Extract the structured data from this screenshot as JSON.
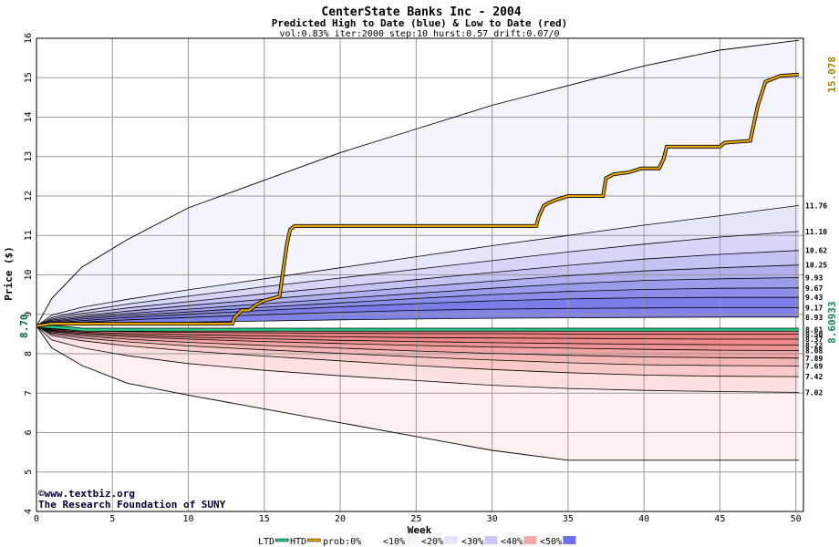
{
  "chart_data": {
    "type": "area",
    "title": "CenterState Banks Inc - 2004",
    "subtitle": "Predicted High to Date (blue) &  Low to Date (red)",
    "params": "vol:0.83% iter:2000 step:10 hurst:0.57 drift:0.07/0",
    "xlabel": "Week",
    "ylabel": "Price ($)",
    "xlim": [
      0,
      50.5
    ],
    "ylim": [
      4,
      16
    ],
    "x_ticks": [
      0,
      5,
      10,
      15,
      20,
      25,
      30,
      35,
      40,
      45,
      50
    ],
    "y_ticks": [
      4,
      5,
      6,
      7,
      8,
      9,
      10,
      11,
      12,
      13,
      14,
      15,
      16
    ],
    "grid": true,
    "start_price": 8.7,
    "start_price_label": "8.70",
    "htd_final": 15.078,
    "htd_final_label": "15.078",
    "ltd_final": 8.60933,
    "ltd_final_label": "8.60933",
    "upper_bands": [
      {
        "label": "11.76",
        "x": [
          0,
          1,
          3,
          6,
          10,
          15,
          20,
          25,
          30,
          35,
          40,
          45,
          50.2
        ],
        "y": [
          8.7,
          8.98,
          9.18,
          9.38,
          9.62,
          9.9,
          10.18,
          10.46,
          10.74,
          11.0,
          11.26,
          11.5,
          11.76
        ]
      },
      {
        "label": "11.10",
        "x": [
          0,
          1,
          3,
          6,
          10,
          15,
          20,
          25,
          30,
          35,
          40,
          45,
          50.2
        ],
        "y": [
          8.7,
          8.92,
          9.08,
          9.26,
          9.46,
          9.7,
          9.92,
          10.14,
          10.36,
          10.58,
          10.78,
          10.96,
          11.1
        ]
      },
      {
        "label": "10.62",
        "x": [
          0,
          1,
          3,
          6,
          10,
          15,
          20,
          25,
          30,
          35,
          40,
          45,
          50.2
        ],
        "y": [
          8.7,
          8.88,
          9.02,
          9.16,
          9.32,
          9.52,
          9.7,
          9.88,
          10.06,
          10.24,
          10.4,
          10.52,
          10.62
        ]
      },
      {
        "label": "10.25",
        "x": [
          0,
          1,
          3,
          6,
          10,
          15,
          20,
          25,
          30,
          35,
          40,
          45,
          50.2
        ],
        "y": [
          8.7,
          8.85,
          8.96,
          9.08,
          9.22,
          9.38,
          9.54,
          9.69,
          9.84,
          9.98,
          10.1,
          10.18,
          10.25
        ]
      },
      {
        "label": "9.93",
        "x": [
          0,
          1,
          3,
          6,
          10,
          15,
          20,
          25,
          30,
          35,
          40,
          45,
          50.2
        ],
        "y": [
          8.7,
          8.82,
          8.92,
          9.02,
          9.13,
          9.27,
          9.4,
          9.53,
          9.66,
          9.77,
          9.86,
          9.9,
          9.93
        ]
      },
      {
        "label": "9.67",
        "x": [
          0,
          1,
          3,
          6,
          10,
          15,
          20,
          25,
          30,
          35,
          40,
          45,
          50.2
        ],
        "y": [
          8.7,
          8.8,
          8.88,
          8.97,
          9.06,
          9.18,
          9.29,
          9.4,
          9.5,
          9.58,
          9.63,
          9.66,
          9.67
        ]
      },
      {
        "label": "9.43",
        "x": [
          0,
          1,
          3,
          6,
          10,
          15,
          20,
          25,
          30,
          35,
          40,
          45,
          50.2
        ],
        "y": [
          8.7,
          8.78,
          8.84,
          8.92,
          9.0,
          9.1,
          9.19,
          9.27,
          9.34,
          9.39,
          9.42,
          9.43,
          9.43
        ]
      },
      {
        "label": "9.17",
        "x": [
          0,
          1,
          3,
          6,
          10,
          15,
          20,
          25,
          30,
          35,
          40,
          45,
          50.2
        ],
        "y": [
          8.7,
          8.76,
          8.8,
          8.86,
          8.92,
          8.99,
          9.05,
          9.1,
          9.13,
          9.15,
          9.16,
          9.17,
          9.17
        ]
      },
      {
        "label": "8.93",
        "x": [
          0,
          1,
          3,
          6,
          10,
          15,
          20,
          25,
          30,
          35,
          40,
          45,
          50.2
        ],
        "y": [
          8.7,
          8.74,
          8.76,
          8.78,
          8.8,
          8.83,
          8.86,
          8.88,
          8.9,
          8.91,
          8.92,
          8.93,
          8.93
        ]
      }
    ],
    "upper_envelope": {
      "x": [
        0,
        1,
        3,
        6,
        10,
        15,
        20,
        25,
        30,
        35,
        40,
        45,
        50.2
      ],
      "y": [
        8.7,
        9.4,
        10.2,
        10.9,
        11.7,
        12.4,
        13.1,
        13.7,
        14.3,
        14.8,
        15.3,
        15.7,
        15.95
      ]
    },
    "lower_bands": [
      {
        "label": "8.61",
        "x": [
          0,
          1,
          3,
          6,
          10,
          15,
          20,
          25,
          30,
          35,
          40,
          45,
          50.2
        ],
        "y": [
          8.7,
          8.64,
          8.62,
          8.61,
          8.61,
          8.61,
          8.61,
          8.61,
          8.61,
          8.61,
          8.61,
          8.61,
          8.61
        ]
      },
      {
        "label": "8.50",
        "x": [
          0,
          1,
          3,
          6,
          10,
          15,
          20,
          25,
          30,
          35,
          40,
          45,
          50.2
        ],
        "y": [
          8.7,
          8.62,
          8.58,
          8.56,
          8.54,
          8.53,
          8.52,
          8.51,
          8.51,
          8.5,
          8.5,
          8.5,
          8.5
        ]
      },
      {
        "label": "8.37",
        "x": [
          0,
          1,
          3,
          6,
          10,
          15,
          20,
          25,
          30,
          35,
          40,
          45,
          50.2
        ],
        "y": [
          8.7,
          8.6,
          8.55,
          8.51,
          8.48,
          8.45,
          8.43,
          8.41,
          8.4,
          8.39,
          8.38,
          8.37,
          8.37
        ]
      },
      {
        "label": "8.22",
        "x": [
          0,
          1,
          3,
          6,
          10,
          15,
          20,
          25,
          30,
          35,
          40,
          45,
          50.2
        ],
        "y": [
          8.7,
          8.58,
          8.52,
          8.47,
          8.42,
          8.38,
          8.34,
          8.31,
          8.28,
          8.26,
          8.24,
          8.23,
          8.22
        ]
      },
      {
        "label": "8.08",
        "x": [
          0,
          1,
          3,
          6,
          10,
          15,
          20,
          25,
          30,
          35,
          40,
          45,
          50.2
        ],
        "y": [
          8.7,
          8.56,
          8.49,
          8.43,
          8.37,
          8.31,
          8.26,
          8.21,
          8.17,
          8.14,
          8.11,
          8.09,
          8.08
        ]
      },
      {
        "label": "7.89",
        "x": [
          0,
          1,
          3,
          6,
          10,
          15,
          20,
          25,
          30,
          35,
          40,
          45,
          50.2
        ],
        "y": [
          8.7,
          8.53,
          8.45,
          8.37,
          8.29,
          8.21,
          8.14,
          8.07,
          8.01,
          7.96,
          7.92,
          7.9,
          7.89
        ]
      },
      {
        "label": "7.69",
        "x": [
          0,
          1,
          3,
          6,
          10,
          15,
          20,
          25,
          30,
          35,
          40,
          45,
          50.2
        ],
        "y": [
          8.7,
          8.5,
          8.4,
          8.3,
          8.2,
          8.1,
          8.01,
          7.92,
          7.84,
          7.77,
          7.72,
          7.7,
          7.69
        ]
      },
      {
        "label": "7.42",
        "x": [
          0,
          1,
          3,
          6,
          10,
          15,
          20,
          25,
          30,
          35,
          40,
          45,
          50.2
        ],
        "y": [
          8.7,
          8.46,
          8.33,
          8.2,
          8.07,
          7.94,
          7.82,
          7.7,
          7.6,
          7.52,
          7.46,
          7.43,
          7.42
        ]
      },
      {
        "label": "7.02",
        "x": [
          0,
          1,
          3,
          6,
          10,
          15,
          20,
          25,
          30,
          35,
          40,
          45,
          50.2
        ],
        "y": [
          8.7,
          8.35,
          8.15,
          7.95,
          7.75,
          7.58,
          7.44,
          7.32,
          7.2,
          7.12,
          7.07,
          7.04,
          7.02
        ]
      }
    ],
    "lower_envelope": {
      "x": [
        0,
        1,
        3,
        6,
        10,
        15,
        20,
        25,
        30,
        35,
        40,
        45,
        50.2
      ],
      "y": [
        8.7,
        8.15,
        7.7,
        7.25,
        6.95,
        6.6,
        6.25,
        5.9,
        5.55,
        5.3,
        5.3,
        5.3,
        5.3
      ]
    },
    "series": [
      {
        "name": "HTD",
        "color": "#e8a800",
        "x": [
          0,
          1,
          12.9,
          13,
          13.5,
          14,
          14.5,
          15,
          16,
          16.2,
          16.5,
          16.7,
          17,
          32.9,
          33.1,
          33.4,
          33.7,
          34.2,
          34.7,
          35,
          37.3,
          37.5,
          38,
          39,
          39.8,
          41,
          41.3,
          41.5,
          45,
          45.3,
          47,
          47.5,
          48,
          49,
          50.2
        ],
        "y": [
          8.7,
          8.76,
          8.76,
          8.9,
          9.1,
          9.1,
          9.25,
          9.35,
          9.45,
          10.0,
          10.8,
          11.15,
          11.24,
          11.24,
          11.5,
          11.75,
          11.82,
          11.9,
          11.96,
          12.0,
          12.0,
          12.45,
          12.55,
          12.6,
          12.7,
          12.7,
          12.95,
          13.25,
          13.25,
          13.35,
          13.4,
          14.3,
          14.9,
          15.05,
          15.08
        ]
      },
      {
        "name": "LTD",
        "color": "#22cc88",
        "x": [
          0,
          1,
          2,
          3,
          50.2
        ],
        "y": [
          8.7,
          8.68,
          8.65,
          8.61,
          8.61
        ]
      }
    ],
    "legend": {
      "items": [
        "LTD",
        "HTD",
        "prob:0%",
        "<10%",
        "<20%",
        "<30%",
        "<40%",
        "<50%"
      ],
      "swatches": [
        "#22cc88",
        "#e8a800",
        "#ffffff",
        "#f6f6fe",
        "#e4e4fa",
        "#c8c8f6",
        "#f0a8a8",
        "#7070ee"
      ]
    },
    "watermark": [
      "©www.textbiz.org",
      "The Research Foundation of SUNY"
    ]
  }
}
